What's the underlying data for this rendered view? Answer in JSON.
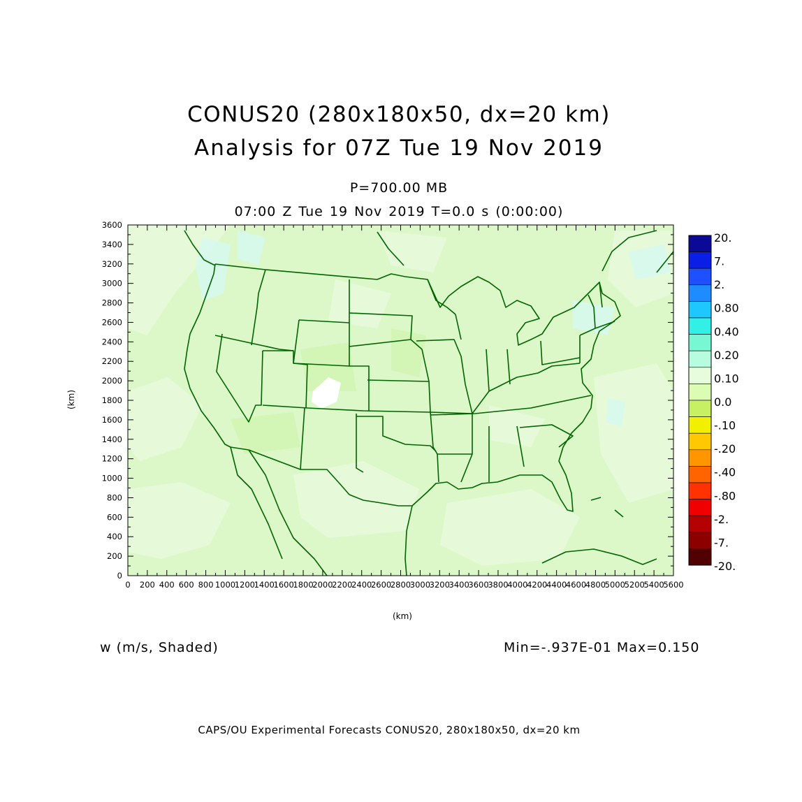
{
  "title": "CONUS20 (280x180x50, dx=20 km)",
  "subtitle": "Analysis for 07Z Tue 19 Nov 2019",
  "pressure_level": "P=700.00 MB",
  "time_line": "07:00 Z Tue 19 Nov 2019    T=0.0 s (0:00:00)",
  "variable_label": "w (m/s, Shaded)",
  "min_max": "Min=-.937E-01 Max=0.150",
  "footer": "CAPS/OU Experimental Forecasts  CONUS20, 280x180x50, dx=20 km",
  "axes": {
    "xlabel": "(km)",
    "ylabel": "(km)",
    "x_range": [
      0,
      5600
    ],
    "y_range": [
      0,
      3600
    ],
    "x_ticks": [
      "0",
      "200",
      "400",
      "600",
      "800",
      "1000",
      "1200",
      "1400",
      "1600",
      "1800",
      "2000",
      "2200",
      "2400",
      "2600",
      "2800",
      "3000",
      "3200",
      "3400",
      "3600",
      "3800",
      "4000",
      "4200",
      "4400",
      "4600",
      "4800",
      "5000",
      "5200",
      "5400",
      "5600"
    ],
    "y_ticks": [
      "0",
      "200",
      "400",
      "600",
      "800",
      "1000",
      "1200",
      "1400",
      "1600",
      "1800",
      "2000",
      "2200",
      "2400",
      "2600",
      "2800",
      "3000",
      "3200",
      "3400",
      "3600"
    ]
  },
  "colorbar": {
    "labels": [
      "20.",
      "7.",
      "2.",
      "0.80",
      "0.40",
      "0.20",
      "0.10",
      "0.0",
      "-.10",
      "-.20",
      "-.40",
      "-.80",
      "-2.",
      "-7.",
      "-20."
    ],
    "colors": [
      "#0a0a96",
      "#0a1ee6",
      "#1e50ff",
      "#1e8cff",
      "#1ec8ff",
      "#32f0e6",
      "#78f8d2",
      "#b8fce0",
      "#e6fcdc",
      "#dcfcb4",
      "#c8f064",
      "#f0f000",
      "#ffc800",
      "#ff9600",
      "#ff6400",
      "#ff3200",
      "#f00000",
      "#b40000",
      "#8c0000",
      "#500000"
    ]
  },
  "map": {
    "background_color": "#dcf8c8",
    "land_boundary_color": "#006400",
    "shade_light": "#e8fadc",
    "shade_mid": "#d2f4b4",
    "shade_cyan": "#d6f8ec"
  }
}
